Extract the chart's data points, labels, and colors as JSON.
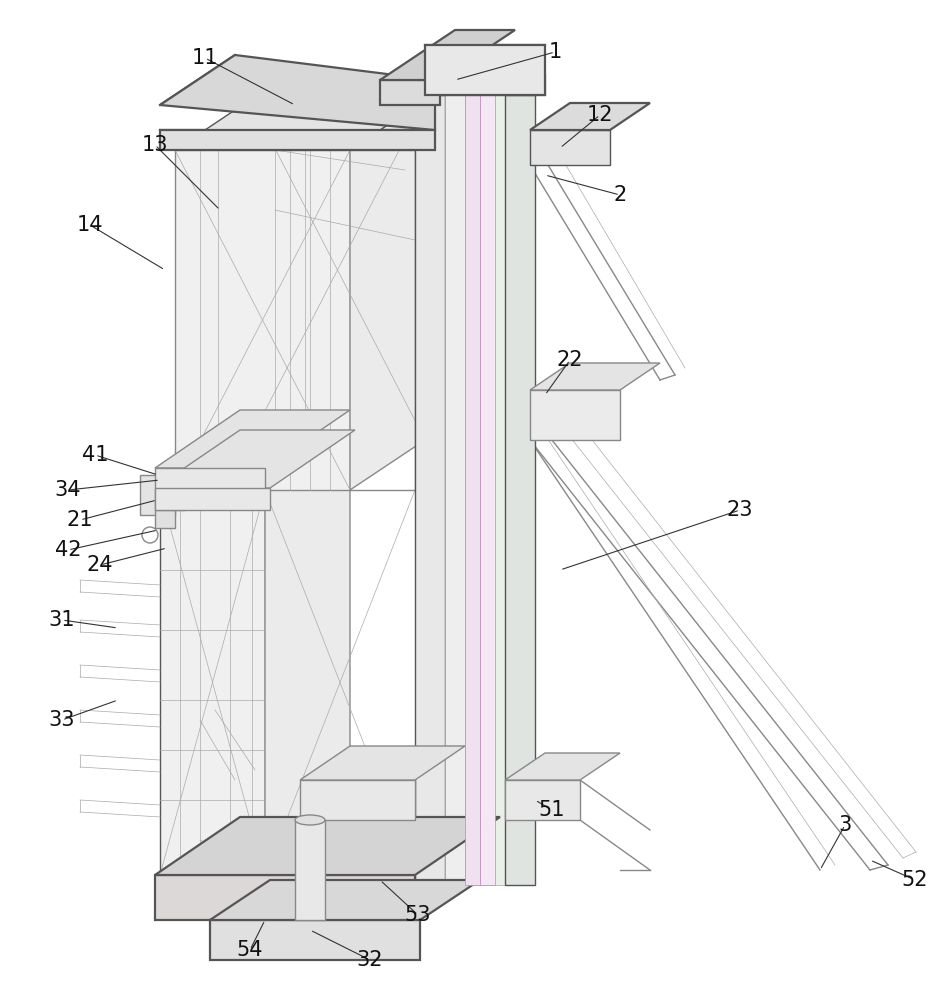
{
  "bg_color": "#ffffff",
  "lc": "#888888",
  "lc_dark": "#555555",
  "lc_light": "#aaaaaa",
  "lc_purple": "#bb88bb",
  "lc_green": "#88bb88",
  "lw_main": 1.0,
  "lw_thick": 1.6,
  "lw_thin": 0.5,
  "label_fontsize": 15,
  "label_color": "#111111",
  "fig_w": 9.32,
  "fig_h": 10.0,
  "dpi": 100
}
